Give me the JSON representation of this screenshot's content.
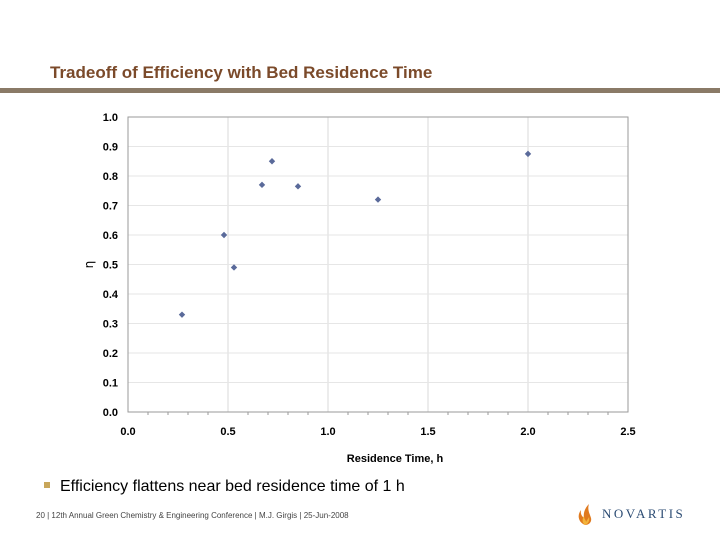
{
  "slide": {
    "title": "Tradeoff of Efficiency with Bed Residence Time",
    "bullet": "Efficiency flattens near bed residence time of 1 h",
    "footer": "20 | 12th Annual Green Chemistry &  Engineering Conference | M.J. Girgis | 25-Jun-2008",
    "brand": "NOVARTIS",
    "colors": {
      "title": "#7b4a2a",
      "rule": "#8a7a67",
      "bullet": "#c8a65a",
      "marker": "#5a6a9a",
      "brand": "#2b4b73"
    },
    "icons": {
      "bullet": "square-bullet-icon",
      "logo": "novartis-flame-icon"
    }
  },
  "chart_data": {
    "type": "scatter",
    "title": "",
    "xlabel": "Residence Time, h",
    "ylabel": "η",
    "xlim": [
      0.0,
      2.5
    ],
    "ylim": [
      0.0,
      1.0
    ],
    "xticks": [
      "0.0",
      "0.5",
      "1.0",
      "1.5",
      "2.0",
      "2.5"
    ],
    "yticks": [
      "0.0",
      "0.1",
      "0.2",
      "0.3",
      "0.4",
      "0.5",
      "0.6",
      "0.7",
      "0.8",
      "0.9",
      "1.0"
    ],
    "grid": true,
    "legend": "none",
    "series": [
      {
        "x": [
          0.27,
          0.48,
          0.53,
          0.67,
          0.72,
          0.85,
          1.25,
          2.0
        ],
        "y": [
          0.33,
          0.6,
          0.49,
          0.77,
          0.85,
          0.765,
          0.72,
          0.875
        ]
      }
    ]
  }
}
